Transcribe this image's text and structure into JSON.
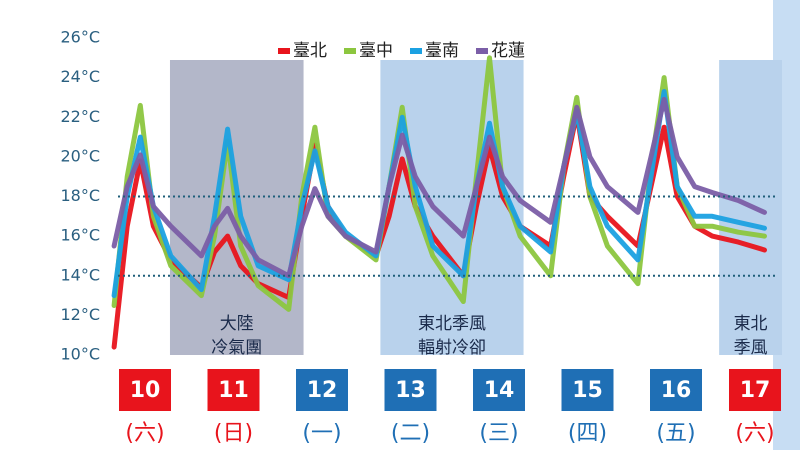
{
  "chart_data": {
    "type": "line",
    "x": [
      10.15,
      10.3,
      10.45,
      10.6,
      10.8,
      11.15,
      11.3,
      11.45,
      11.6,
      11.8,
      12.15,
      12.3,
      12.45,
      12.6,
      12.8,
      13.15,
      13.3,
      13.45,
      13.6,
      13.8,
      14.15,
      14.3,
      14.45,
      14.6,
      14.8,
      15.15,
      15.3,
      15.45,
      15.6,
      15.8,
      16.15,
      16.3,
      16.45,
      16.6,
      16.8,
      17.0,
      17.3,
      17.6
    ],
    "xlim": [
      10,
      17.8
    ],
    "ylim": [
      10,
      26
    ],
    "yticks": [
      {
        "value": 10,
        "label": "10°C"
      },
      {
        "value": 12,
        "label": "12°C"
      },
      {
        "value": 14,
        "label": "14°C"
      },
      {
        "value": 16,
        "label": "16°C"
      },
      {
        "value": 18,
        "label": "18°C"
      },
      {
        "value": 20,
        "label": "20°C"
      },
      {
        "value": 22,
        "label": "22°C"
      },
      {
        "value": 24,
        "label": "24°C"
      },
      {
        "value": 26,
        "label": "26°C"
      }
    ],
    "reference_lines": [
      18,
      14
    ],
    "series": [
      {
        "name": "臺北",
        "color": "#e8141c",
        "values": [
          10.4,
          16.5,
          19.8,
          16.5,
          14.8,
          13.4,
          15.2,
          16.0,
          14.5,
          13.6,
          12.9,
          17.0,
          20.6,
          17.5,
          16.0,
          15.0,
          17.0,
          19.9,
          17.5,
          16.0,
          14.0,
          17.5,
          20.5,
          18.0,
          16.5,
          15.5,
          19.0,
          22.2,
          18.0,
          17.0,
          15.5,
          18.5,
          21.5,
          18.0,
          16.5,
          16.0,
          15.7,
          15.3
        ]
      },
      {
        "name": "臺中",
        "color": "#8cc63f",
        "values": [
          12.5,
          19.0,
          22.6,
          17.0,
          14.5,
          13.0,
          16.0,
          20.8,
          15.5,
          13.5,
          12.3,
          18.0,
          21.5,
          17.0,
          16.0,
          14.8,
          18.5,
          22.5,
          17.5,
          15.0,
          12.7,
          19.0,
          25.0,
          18.5,
          16.0,
          14.0,
          19.5,
          23.0,
          18.0,
          15.5,
          13.6,
          19.5,
          24.0,
          18.5,
          16.5,
          16.5,
          16.2,
          16.0
        ]
      },
      {
        "name": "臺南",
        "color": "#1ba1e2",
        "values": [
          13.0,
          18.0,
          21.0,
          17.5,
          15.0,
          13.3,
          17.0,
          21.4,
          17.0,
          14.5,
          13.8,
          17.5,
          20.3,
          17.5,
          16.2,
          15.0,
          18.5,
          22.0,
          18.5,
          15.5,
          14.0,
          18.5,
          21.7,
          18.5,
          16.5,
          15.2,
          19.5,
          22.3,
          18.5,
          16.5,
          14.8,
          19.0,
          23.3,
          18.5,
          17.0,
          17.0,
          16.7,
          16.4
        ]
      },
      {
        "name": "花蓮",
        "color": "#7b5ea7",
        "values": [
          15.5,
          18.5,
          20.1,
          17.5,
          16.5,
          15.0,
          16.5,
          17.4,
          16.0,
          14.8,
          14.0,
          16.5,
          18.4,
          17.0,
          16.0,
          15.2,
          18.5,
          21.1,
          19.0,
          17.5,
          16.0,
          18.5,
          21.0,
          19.0,
          17.8,
          16.7,
          19.5,
          22.5,
          20.0,
          18.5,
          17.2,
          20.0,
          22.9,
          20.0,
          18.5,
          18.2,
          17.8,
          17.2
        ]
      }
    ],
    "bands": [
      {
        "x": [
          10.79,
          12.32
        ],
        "color": "#b3b7c9",
        "label": [
          "大陸",
          "冷氣團"
        ]
      },
      {
        "x": [
          13.2,
          14.84
        ],
        "color": "#b9d2ec",
        "label": [
          "東北季風",
          "輻射冷卻"
        ]
      },
      {
        "x": [
          17.08,
          17.8
        ],
        "color": "#b9d2ec",
        "label": [
          "東北",
          "季風"
        ]
      }
    ],
    "categories": [
      "10",
      "11",
      "12",
      "13",
      "14",
      "15",
      "16",
      "17"
    ],
    "category_sublabels": [
      "(六)",
      "(日)",
      "(一)",
      "(二)",
      "(三)",
      "(四)",
      "(五)",
      "(六)"
    ],
    "category_colors": [
      "#e8141c",
      "#e8141c",
      "#1f6fb5",
      "#1f6fb5",
      "#1f6fb5",
      "#1f6fb5",
      "#1f6fb5",
      "#e8141c"
    ]
  }
}
